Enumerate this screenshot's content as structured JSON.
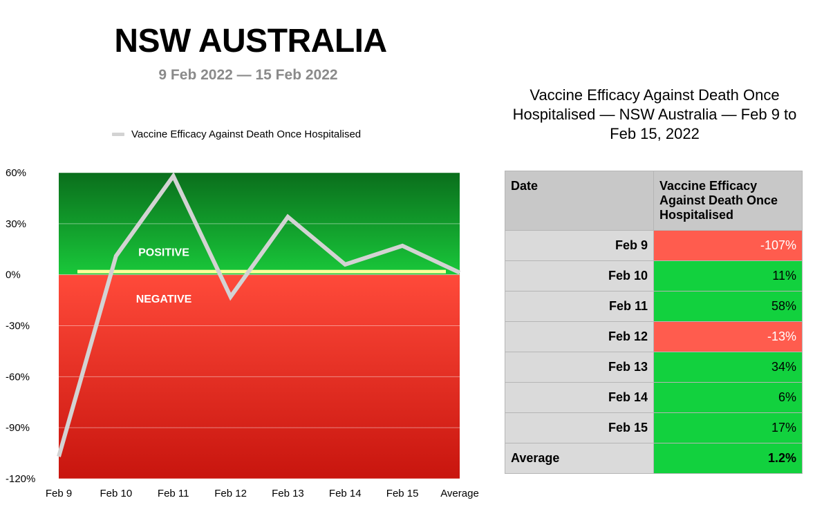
{
  "title": "NSW AUSTRALIA",
  "subtitle": "9 Feb 2022 — 15 Feb 2022",
  "chart_data": {
    "type": "line",
    "categories": [
      "Feb 9",
      "Feb 10",
      "Feb 11",
      "Feb 12",
      "Feb 13",
      "Feb 14",
      "Feb 15",
      "Average"
    ],
    "series": [
      {
        "name": "Vaccine Efficacy Against Death Once Hospitalised",
        "values": [
          -107,
          11,
          58,
          -13,
          34,
          6,
          17,
          1.2
        ],
        "color": "#d3d3d3"
      }
    ],
    "ylim": [
      -120,
      60
    ],
    "yticks": [
      60,
      30,
      0,
      -30,
      -60,
      -90,
      -120
    ],
    "ytick_labels": [
      "60%",
      "30%",
      "0%",
      "-30%",
      "-60%",
      "-90%",
      "-120%"
    ],
    "legend_position": "top",
    "grid": true,
    "region_labels": {
      "positive": "POSITIVE",
      "negative": "NEGATIVE"
    },
    "colors": {
      "positive_top": "#0a6e1c",
      "positive_bottom": "#19c83a",
      "negative_top": "#ff4a3a",
      "negative_bottom": "#c8150e",
      "zero_band": "#ffff9a",
      "line": "#d3d3d3"
    }
  },
  "table": {
    "title": "Vaccine Efficacy Against Death Once Hospitalised — NSW Australia — Feb 9 to Feb 15, 2022",
    "headers": [
      "Date",
      "Vaccine Efficacy Against Death Once Hospitalised"
    ],
    "rows": [
      {
        "date": "Feb 9",
        "value": "-107%",
        "status": "neg"
      },
      {
        "date": "Feb 10",
        "value": "11%",
        "status": "pos"
      },
      {
        "date": "Feb 11",
        "value": "58%",
        "status": "pos"
      },
      {
        "date": "Feb 12",
        "value": "-13%",
        "status": "neg"
      },
      {
        "date": "Feb 13",
        "value": "34%",
        "status": "pos"
      },
      {
        "date": "Feb 14",
        "value": "6%",
        "status": "pos"
      },
      {
        "date": "Feb 15",
        "value": "17%",
        "status": "pos"
      }
    ],
    "average": {
      "date": "Average",
      "value": "1.2%",
      "status": "pos"
    }
  }
}
